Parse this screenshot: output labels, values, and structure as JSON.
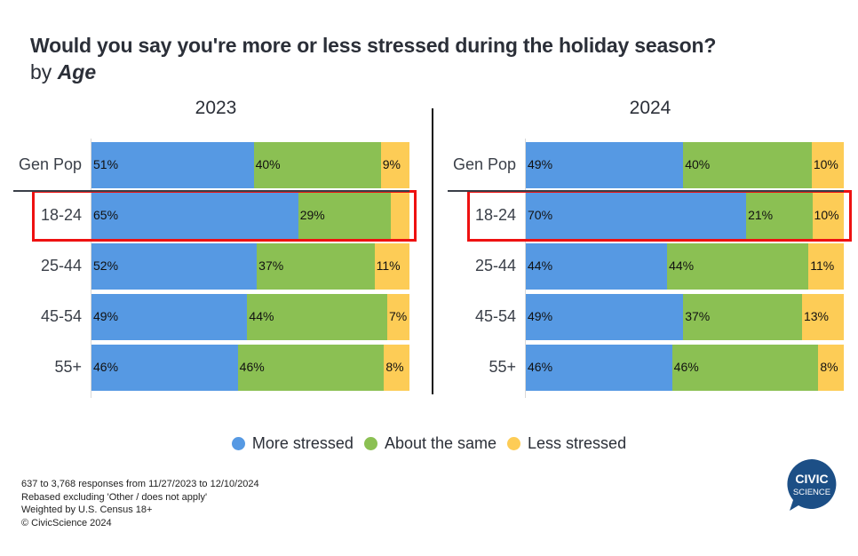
{
  "header": {
    "title": "Would you say you're more or less stressed during the holiday season?",
    "subtitle_prefix": "by",
    "subtitle_var": "Age"
  },
  "colors": {
    "more": "#5699e3",
    "same": "#8bc053",
    "less": "#fdcc56",
    "highlight": "#ee1111",
    "logo": "#1c4f86"
  },
  "legend": [
    {
      "key": "more",
      "label": "More stressed",
      "color": "#5699e3"
    },
    {
      "key": "same",
      "label": "About the same",
      "color": "#8bc053"
    },
    {
      "key": "less",
      "label": "Less stressed",
      "color": "#fdcc56"
    }
  ],
  "footnotes": [
    "637 to 3,768 responses from 11/27/2023 to 12/10/2024",
    "Rebased excluding 'Other / does not apply'",
    "Weighted by U.S. Census 18+",
    "© CivicScience 2024"
  ],
  "logo": {
    "line1": "CIVIC",
    "line2": "SCIENCE"
  },
  "chart_data": [
    {
      "type": "bar",
      "orientation": "horizontal",
      "stacked": true,
      "title": "2023",
      "categories": [
        "Gen Pop",
        "18-24",
        "25-44",
        "45-54",
        "55+"
      ],
      "highlighted_category": "18-24",
      "series": [
        {
          "name": "More stressed",
          "values": [
            51,
            65,
            52,
            49,
            46
          ]
        },
        {
          "name": "About the same",
          "values": [
            40,
            29,
            37,
            44,
            46
          ]
        },
        {
          "name": "Less stressed",
          "values": [
            9,
            6,
            11,
            7,
            8
          ]
        }
      ],
      "labels": [
        [
          "51%",
          "40%",
          "9%"
        ],
        [
          "65%",
          "29%",
          ""
        ],
        [
          "52%",
          "37%",
          "11%"
        ],
        [
          "49%",
          "44%",
          "7%"
        ],
        [
          "46%",
          "46%",
          "8%"
        ]
      ],
      "xlim": [
        0,
        100
      ],
      "legend": "bottom",
      "grid": false
    },
    {
      "type": "bar",
      "orientation": "horizontal",
      "stacked": true,
      "title": "2024",
      "categories": [
        "Gen Pop",
        "18-24",
        "25-44",
        "45-54",
        "55+"
      ],
      "highlighted_category": "18-24",
      "series": [
        {
          "name": "More stressed",
          "values": [
            49,
            70,
            44,
            49,
            46
          ]
        },
        {
          "name": "About the same",
          "values": [
            40,
            21,
            44,
            37,
            46
          ]
        },
        {
          "name": "Less stressed",
          "values": [
            10,
            10,
            11,
            13,
            8
          ]
        }
      ],
      "labels": [
        [
          "49%",
          "40%",
          "10%"
        ],
        [
          "70%",
          "21%",
          "10%"
        ],
        [
          "44%",
          "44%",
          "11%"
        ],
        [
          "49%",
          "37%",
          "13%"
        ],
        [
          "46%",
          "46%",
          "8%"
        ]
      ],
      "xlim": [
        0,
        100
      ],
      "legend": "bottom",
      "grid": false
    }
  ]
}
